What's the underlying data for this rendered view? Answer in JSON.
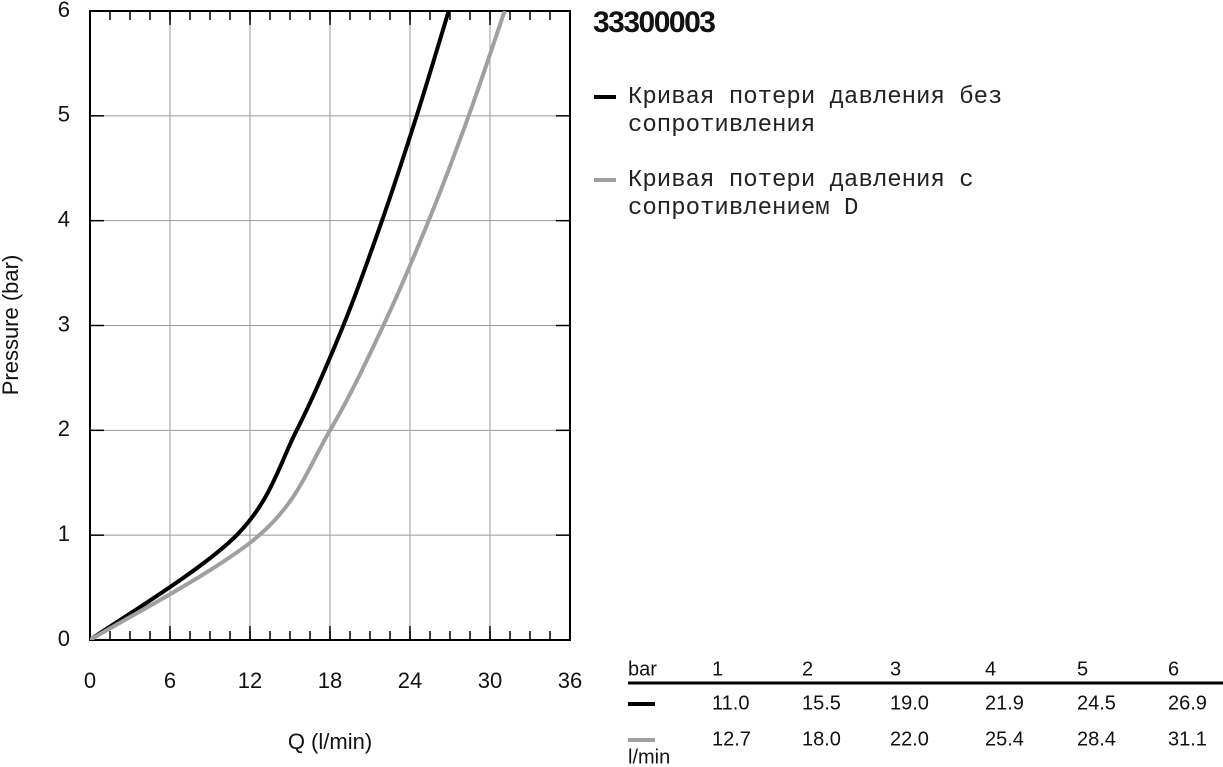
{
  "chart_data": {
    "type": "line",
    "title": "33300003",
    "xlabel": "Q (l/min)",
    "ylabel": "Pressure (bar)",
    "xlim": [
      0,
      36
    ],
    "ylim": [
      0,
      6
    ],
    "xticks": [
      0,
      6,
      12,
      18,
      24,
      30,
      36
    ],
    "yticks": [
      0,
      1,
      2,
      3,
      4,
      5,
      6
    ],
    "xminorticks": [
      0,
      1.5,
      3,
      4.5,
      6,
      7.5,
      9,
      10.5,
      12,
      13.5,
      15,
      16.5,
      18,
      19.5,
      21,
      22.5,
      24,
      25.5,
      27,
      28.5,
      30,
      31.5,
      33,
      34.5,
      36
    ],
    "grid": true,
    "series": [
      {
        "name": "Кривая потери давления без сопротивления",
        "color": "#000000",
        "x": [
          0,
          11.0,
          15.5,
          19.0,
          21.9,
          24.5,
          26.9
        ],
        "values": [
          0,
          1,
          2,
          3,
          4,
          5,
          6
        ]
      },
      {
        "name": "Кривая потери давления с сопротивлением D",
        "color": "#a0a0a0",
        "x": [
          0,
          12.7,
          18.0,
          22.0,
          25.4,
          28.4,
          31.1
        ],
        "values": [
          0,
          1,
          2,
          3,
          4,
          5,
          6
        ]
      }
    ]
  },
  "table": {
    "header": [
      "bar",
      "1",
      "2",
      "3",
      "4",
      "5",
      "6"
    ],
    "rows": [
      [
        "11.0",
        "15.5",
        "19.0",
        "21.9",
        "24.5",
        "26.9"
      ],
      [
        "12.7",
        "18.0",
        "22.0",
        "25.4",
        "28.4",
        "31.1"
      ]
    ],
    "unit": "l/min"
  }
}
